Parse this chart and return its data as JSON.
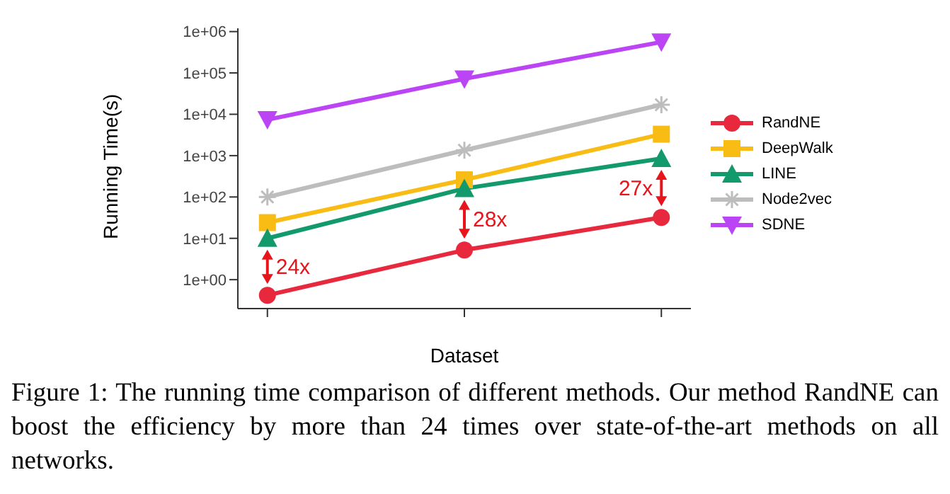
{
  "chart_data": {
    "type": "line",
    "xlabel": "Dataset",
    "ylabel": "Running Time(s)",
    "categories": [
      null,
      null,
      null
    ],
    "series": [
      {
        "name": "RandNE",
        "color": "#e8283c",
        "marker": "circle",
        "values": [
          0.42,
          5.2,
          32
        ]
      },
      {
        "name": "DeepWalk",
        "color": "#f8bc14",
        "marker": "square",
        "values": [
          24,
          260,
          3300
        ]
      },
      {
        "name": "LINE",
        "color": "#139a6c",
        "marker": "triangle",
        "values": [
          10,
          160,
          850
        ]
      },
      {
        "name": "Node2vec",
        "color": "#bdbdbd",
        "marker": "cross",
        "values": [
          100,
          1350,
          17000
        ]
      },
      {
        "name": "SDNE",
        "color": "#bb44f4",
        "marker": "triangle-down",
        "values": [
          7400,
          72000,
          560000
        ]
      }
    ],
    "log": "y",
    "ylim": [
      0.2,
      1200000
    ],
    "yticks": [
      {
        "value": 1,
        "label": "1e+00"
      },
      {
        "value": 10,
        "label": "1e+01"
      },
      {
        "value": 100,
        "label": "1e+02"
      },
      {
        "value": 1000,
        "label": "1e+03"
      },
      {
        "value": 10000,
        "label": "1e+04"
      },
      {
        "value": 100000,
        "label": "1e+05"
      },
      {
        "value": 1000000,
        "label": "1e+06"
      }
    ],
    "grid": false,
    "legend": "right",
    "line_style": "solid",
    "annotations": [
      "24x",
      "28x",
      "27x",
      "Figure 1: The running time comparison of different methods. Our method RandNE can boost the efficiency by more than 24 times over state-of-the-art methods on all networks."
    ]
  }
}
